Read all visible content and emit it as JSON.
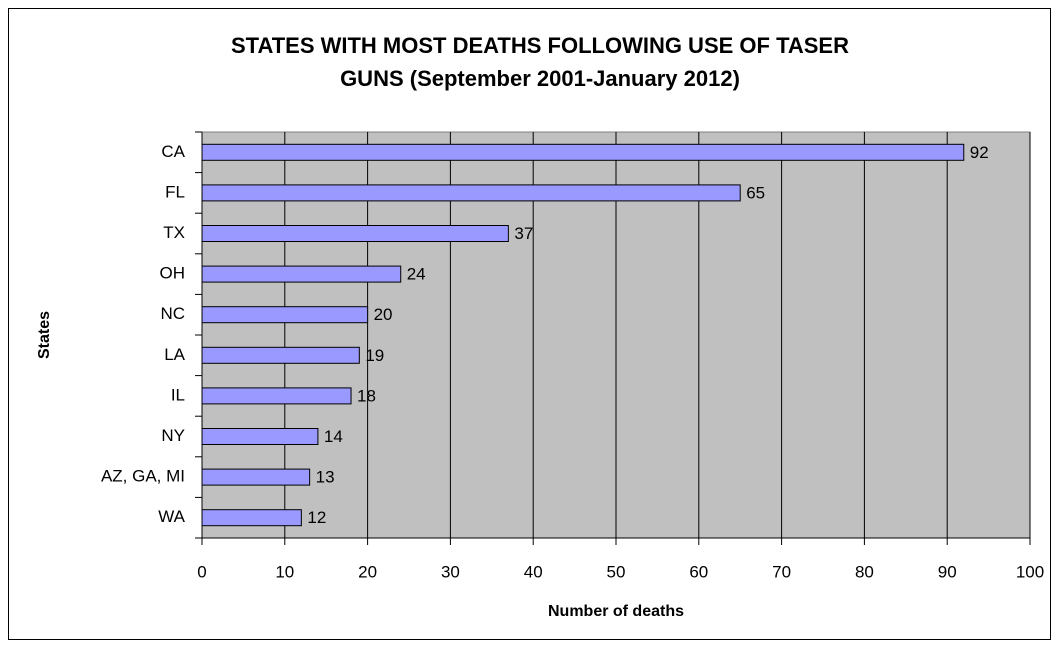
{
  "chart_data": {
    "type": "bar",
    "orientation": "horizontal",
    "title": [
      "STATES WITH MOST DEATHS FOLLOWING USE OF TASER",
      "GUNS (September 2001-January 2012)"
    ],
    "x_label": "Number of deaths",
    "y_label": "States",
    "categories": [
      "CA",
      "FL",
      "TX",
      "OH",
      "NC",
      "LA",
      "IL",
      "NY",
      "AZ, GA, MI",
      "WA"
    ],
    "values": [
      92,
      65,
      37,
      24,
      20,
      19,
      18,
      14,
      13,
      12
    ],
    "color": "#9999ff",
    "xlim": [
      0,
      100
    ],
    "xticks": [
      0,
      10,
      20,
      30,
      40,
      50,
      60,
      70,
      80,
      90,
      100
    ],
    "grid": true
  }
}
